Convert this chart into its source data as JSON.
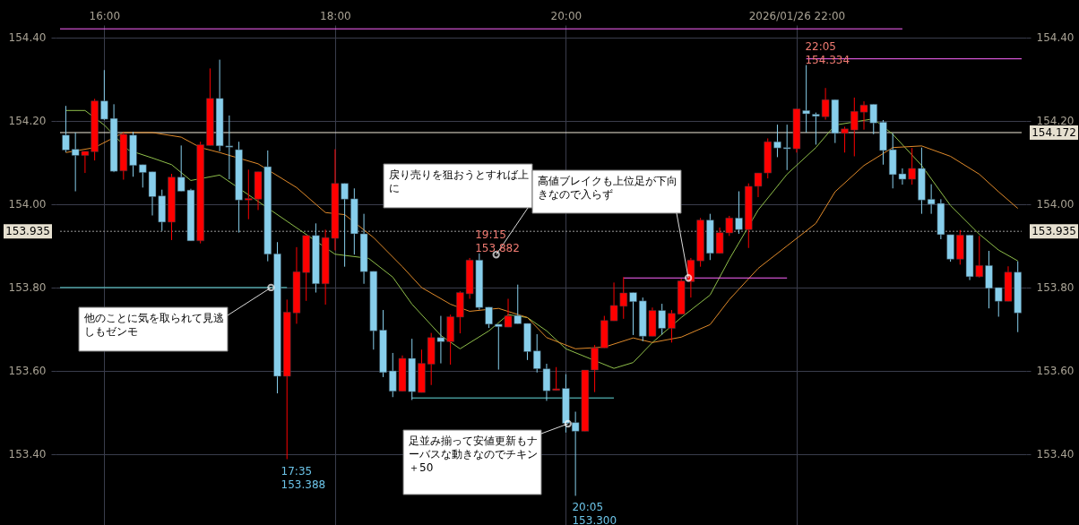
{
  "chart_data": {
    "type": "candlestick",
    "x": [
      "2026-01-26T15:40",
      "2026-01-26T15:45",
      "2026-01-26T15:50",
      "2026-01-26T15:55",
      "2026-01-26T16:00",
      "2026-01-26T16:05",
      "2026-01-26T16:10",
      "2026-01-26T16:15",
      "2026-01-26T16:20",
      "2026-01-26T16:25",
      "2026-01-26T16:30",
      "2026-01-26T16:35",
      "2026-01-26T16:40",
      "2026-01-26T16:45",
      "2026-01-26T16:50",
      "2026-01-26T16:55",
      "2026-01-26T17:00",
      "2026-01-26T17:05",
      "2026-01-26T17:10",
      "2026-01-26T17:15",
      "2026-01-26T17:20",
      "2026-01-26T17:25",
      "2026-01-26T17:30",
      "2026-01-26T17:35",
      "2026-01-26T17:40",
      "2026-01-26T17:45",
      "2026-01-26T17:50",
      "2026-01-26T17:55",
      "2026-01-26T18:00",
      "2026-01-26T18:05",
      "2026-01-26T18:10",
      "2026-01-26T18:15",
      "2026-01-26T18:20",
      "2026-01-26T18:25",
      "2026-01-26T18:30",
      "2026-01-26T18:35",
      "2026-01-26T18:40",
      "2026-01-26T18:45",
      "2026-01-26T18:50",
      "2026-01-26T18:55",
      "2026-01-26T19:00",
      "2026-01-26T19:05",
      "2026-01-26T19:10",
      "2026-01-26T19:15",
      "2026-01-26T19:20",
      "2026-01-26T19:25",
      "2026-01-26T19:30",
      "2026-01-26T19:35",
      "2026-01-26T19:40",
      "2026-01-26T19:45",
      "2026-01-26T19:50",
      "2026-01-26T19:55",
      "2026-01-26T20:00",
      "2026-01-26T20:05",
      "2026-01-26T20:10",
      "2026-01-26T20:15",
      "2026-01-26T20:20",
      "2026-01-26T20:25",
      "2026-01-26T20:30",
      "2026-01-26T20:35",
      "2026-01-26T20:40",
      "2026-01-26T20:45",
      "2026-01-26T20:50",
      "2026-01-26T20:55",
      "2026-01-26T21:00",
      "2026-01-26T21:05",
      "2026-01-26T21:10",
      "2026-01-26T21:15",
      "2026-01-26T21:20",
      "2026-01-26T21:25",
      "2026-01-26T21:30",
      "2026-01-26T21:35",
      "2026-01-26T21:40",
      "2026-01-26T21:45",
      "2026-01-26T21:50",
      "2026-01-26T21:55",
      "2026-01-26T22:00",
      "2026-01-26T22:05",
      "2026-01-26T22:10",
      "2026-01-26T22:15",
      "2026-01-26T22:20",
      "2026-01-26T22:25",
      "2026-01-26T22:30",
      "2026-01-26T22:35",
      "2026-01-26T22:40",
      "2026-01-26T22:45",
      "2026-01-26T22:50",
      "2026-01-26T22:55",
      "2026-01-26T23:00",
      "2026-01-26T23:05",
      "2026-01-26T23:10",
      "2026-01-26T23:15",
      "2026-01-26T23:20",
      "2026-01-26T23:25",
      "2026-01-26T23:30",
      "2026-01-26T23:35",
      "2026-01-26T23:40",
      "2026-01-26T23:45",
      "2026-01-26T23:50",
      "2026-01-26T23:55"
    ],
    "ohlc": [
      [
        154.166,
        154.236,
        154.125,
        154.13
      ],
      [
        154.132,
        154.172,
        154.031,
        154.117
      ],
      [
        154.117,
        154.127,
        154.075,
        154.127
      ],
      [
        154.126,
        154.253,
        154.105,
        154.248
      ],
      [
        154.248,
        154.322,
        154.202,
        154.204
      ],
      [
        154.206,
        154.24,
        154.077,
        154.079
      ],
      [
        154.08,
        154.172,
        154.059,
        154.168
      ],
      [
        154.166,
        154.174,
        154.066,
        154.093
      ],
      [
        154.095,
        154.095,
        154.04,
        154.076
      ],
      [
        154.078,
        154.078,
        153.973,
        154.018
      ],
      [
        154.02,
        154.035,
        153.936,
        153.957
      ],
      [
        153.957,
        154.073,
        153.914,
        154.065
      ],
      [
        154.065,
        154.141,
        154.031,
        154.031
      ],
      [
        154.034,
        154.037,
        153.912,
        153.912
      ],
      [
        153.912,
        154.15,
        153.906,
        154.143
      ],
      [
        154.141,
        154.326,
        154.141,
        154.254
      ],
      [
        154.254,
        154.347,
        154.127,
        154.14
      ],
      [
        154.14,
        154.213,
        154.06,
        154.137
      ],
      [
        154.131,
        154.15,
        153.932,
        154.01
      ],
      [
        154.01,
        154.083,
        153.964,
        154.014
      ],
      [
        154.012,
        154.078,
        153.986,
        154.078
      ],
      [
        154.09,
        154.129,
        153.863,
        153.88
      ],
      [
        153.881,
        153.909,
        153.546,
        153.587
      ],
      [
        153.587,
        153.771,
        153.388,
        153.741
      ],
      [
        153.739,
        153.897,
        153.713,
        153.838
      ],
      [
        153.836,
        153.925,
        153.768,
        153.925
      ],
      [
        153.925,
        153.954,
        153.788,
        153.809
      ],
      [
        153.809,
        153.939,
        153.759,
        153.92
      ],
      [
        153.918,
        154.132,
        153.889,
        154.05
      ],
      [
        154.05,
        154.05,
        153.85,
        154.012
      ],
      [
        154.013,
        154.038,
        153.879,
        153.929
      ],
      [
        153.929,
        153.977,
        153.809,
        153.838
      ],
      [
        153.839,
        153.839,
        153.651,
        153.696
      ],
      [
        153.698,
        153.746,
        153.585,
        153.596
      ],
      [
        153.6,
        153.643,
        153.537,
        153.551
      ],
      [
        153.551,
        153.637,
        153.551,
        153.63
      ],
      [
        153.63,
        153.677,
        153.53,
        153.55
      ],
      [
        153.548,
        153.651,
        153.548,
        153.618
      ],
      [
        153.616,
        153.691,
        153.566,
        153.68
      ],
      [
        153.68,
        153.732,
        153.618,
        153.67
      ],
      [
        153.67,
        153.735,
        153.615,
        153.73
      ],
      [
        153.729,
        153.791,
        153.69,
        153.788
      ],
      [
        153.785,
        153.871,
        153.773,
        153.866
      ],
      [
        153.866,
        153.882,
        153.747,
        153.752
      ],
      [
        153.753,
        153.753,
        153.703,
        153.712
      ],
      [
        153.712,
        153.712,
        153.603,
        153.706
      ],
      [
        153.705,
        153.773,
        153.705,
        153.732
      ],
      [
        153.733,
        153.807,
        153.713,
        153.713
      ],
      [
        153.714,
        153.714,
        153.626,
        153.646
      ],
      [
        153.648,
        153.688,
        153.596,
        153.605
      ],
      [
        153.605,
        153.617,
        153.528,
        153.552
      ],
      [
        153.553,
        153.609,
        153.553,
        153.557
      ],
      [
        153.558,
        153.592,
        153.452,
        153.474
      ],
      [
        153.476,
        153.502,
        153.3,
        153.455
      ],
      [
        153.455,
        153.602,
        153.455,
        153.602
      ],
      [
        153.602,
        153.662,
        153.549,
        153.655
      ],
      [
        153.655,
        153.732,
        153.655,
        153.721
      ],
      [
        153.72,
        153.812,
        153.72,
        153.757
      ],
      [
        153.755,
        153.825,
        153.725,
        153.787
      ],
      [
        153.788,
        153.788,
        153.686,
        153.766
      ],
      [
        153.768,
        153.776,
        153.671,
        153.683
      ],
      [
        153.683,
        153.752,
        153.683,
        153.745
      ],
      [
        153.745,
        153.761,
        153.687,
        153.702
      ],
      [
        153.702,
        153.746,
        153.668,
        153.738
      ],
      [
        153.736,
        153.821,
        153.736,
        153.816
      ],
      [
        153.814,
        153.871,
        153.776,
        153.866
      ],
      [
        153.864,
        153.967,
        153.85,
        153.962
      ],
      [
        153.962,
        153.977,
        153.866,
        153.882
      ],
      [
        153.882,
        153.944,
        153.882,
        153.932
      ],
      [
        153.931,
        153.972,
        153.924,
        153.967
      ],
      [
        153.967,
        154.031,
        153.929,
        153.939
      ],
      [
        153.939,
        154.05,
        153.895,
        154.043
      ],
      [
        154.043,
        154.075,
        154.017,
        154.075
      ],
      [
        154.075,
        154.158,
        154.062,
        154.15
      ],
      [
        154.15,
        154.191,
        154.113,
        154.135
      ],
      [
        154.136,
        154.191,
        154.082,
        154.133
      ],
      [
        154.133,
        154.229,
        154.124,
        154.229
      ],
      [
        154.225,
        154.334,
        154.172,
        154.217
      ],
      [
        154.216,
        154.22,
        154.143,
        154.211
      ],
      [
        154.21,
        154.279,
        154.203,
        154.251
      ],
      [
        154.251,
        154.251,
        154.147,
        154.17
      ],
      [
        154.17,
        154.186,
        154.124,
        154.181
      ],
      [
        154.178,
        154.256,
        154.115,
        154.223
      ],
      [
        154.221,
        154.247,
        154.179,
        154.238
      ],
      [
        154.24,
        154.24,
        154.168,
        154.195
      ],
      [
        154.197,
        154.202,
        154.095,
        154.129
      ],
      [
        154.131,
        154.17,
        154.038,
        154.071
      ],
      [
        154.073,
        154.086,
        154.047,
        154.06
      ],
      [
        154.06,
        154.135,
        154.047,
        154.086
      ],
      [
        154.086,
        154.136,
        153.977,
        154.01
      ],
      [
        154.012,
        154.048,
        153.977,
        154.0
      ],
      [
        154.002,
        154.012,
        153.916,
        153.927
      ],
      [
        153.927,
        153.927,
        153.862,
        153.868
      ],
      [
        153.868,
        153.938,
        153.855,
        153.926
      ],
      [
        153.926,
        153.926,
        153.818,
        153.826
      ],
      [
        153.826,
        153.924,
        153.824,
        153.853
      ],
      [
        153.853,
        153.888,
        153.75,
        153.798
      ],
      [
        153.8,
        153.8,
        153.73,
        153.767
      ],
      [
        153.767,
        153.851,
        153.767,
        153.837
      ],
      [
        153.837,
        153.863,
        153.693,
        153.739
      ]
    ],
    "colors": [
      "#87ceeb",
      "#87ceeb",
      "#ff0000",
      "#ff0000",
      "#87ceeb",
      "#87ceeb",
      "#ff0000",
      "#87ceeb",
      "#87ceeb",
      "#87ceeb",
      "#87ceeb",
      "#ff0000",
      "#87ceeb",
      "#87ceeb",
      "#ff0000",
      "#ff0000",
      "#87ceeb",
      "#87ceeb",
      "#87ceeb",
      "#ff0000",
      "#ff0000",
      "#87ceeb",
      "#87ceeb",
      "#ff0000",
      "#ff0000",
      "#ff0000",
      "#87ceeb",
      "#ff0000",
      "#ff0000",
      "#87ceeb",
      "#87ceeb",
      "#87ceeb",
      "#87ceeb",
      "#87ceeb",
      "#87ceeb",
      "#ff0000",
      "#87ceeb",
      "#ff0000",
      "#ff0000",
      "#87ceeb",
      "#ff0000",
      "#ff0000",
      "#ff0000",
      "#87ceeb",
      "#87ceeb",
      "#87ceeb",
      "#ff0000",
      "#87ceeb",
      "#87ceeb",
      "#87ceeb",
      "#87ceeb",
      "#ff0000",
      "#87ceeb",
      "#87ceeb",
      "#ff0000",
      "#ff0000",
      "#ff0000",
      "#ff0000",
      "#ff0000",
      "#87ceeb",
      "#87ceeb",
      "#ff0000",
      "#87ceeb",
      "#ff0000",
      "#ff0000",
      "#ff0000",
      "#ff0000",
      "#87ceeb",
      "#ff0000",
      "#ff0000",
      "#87ceeb",
      "#ff0000",
      "#ff0000",
      "#ff0000",
      "#87ceeb",
      "#87ceeb",
      "#ff0000",
      "#87ceeb",
      "#87ceeb",
      "#ff0000",
      "#87ceeb",
      "#ff0000",
      "#ff0000",
      "#ff0000",
      "#87ceeb",
      "#87ceeb",
      "#87ceeb",
      "#87ceeb",
      "#ff0000",
      "#87ceeb",
      "#87ceeb",
      "#87ceeb",
      "#87ceeb",
      "#ff0000",
      "#87ceeb",
      "#ff0000",
      "#87ceeb",
      "#87ceeb",
      "#ff0000",
      "#87ceeb"
    ],
    "series": [
      {
        "type": "line",
        "color": "#8fbf4a",
        "x": [
          "2026-01-26T15:40",
          "2026-01-26T15:50",
          "2026-01-26T16:00",
          "2026-01-26T16:12:30",
          "2026-01-26T16:25",
          "2026-01-26T16:35",
          "2026-01-26T16:45",
          "2026-01-26T17:00",
          "2026-01-26T18:00",
          "2026-01-26T18:17:30",
          "2026-01-26T18:30",
          "2026-01-26T18:40",
          "2026-01-26T18:55",
          "2026-01-26T19:05",
          "2026-01-26T19:20",
          "2026-01-26T19:30",
          "2026-01-26T19:40",
          "2026-01-26T19:50",
          "2026-01-26T20:00",
          "2026-01-26T20:25",
          "2026-01-26T20:35",
          "2026-01-26T20:45",
          "2026-01-26T21:00",
          "2026-01-26T21:15",
          "2026-01-26T21:25",
          "2026-01-26T21:40",
          "2026-01-26T21:55",
          "2026-01-26T22:10",
          "2026-01-26T22:20",
          "2026-01-26T22:40",
          "2026-01-26T22:50",
          "2026-01-26T23:05",
          "2026-01-26T23:20",
          "2026-01-26T23:35",
          "2026-01-26T23:45",
          "2026-01-26T23:55"
        ],
        "values": [
          154.225,
          154.225,
          154.19,
          154.13,
          154.111,
          154.095,
          154.057,
          154.07,
          153.88,
          153.87,
          153.825,
          153.76,
          153.685,
          153.653,
          153.696,
          153.735,
          153.728,
          153.696,
          153.653,
          153.606,
          153.62,
          153.668,
          153.728,
          153.782,
          153.868,
          153.986,
          154.072,
          154.136,
          154.19,
          154.205,
          154.168,
          154.093,
          153.997,
          153.928,
          153.89,
          153.864
        ]
      },
      {
        "type": "line",
        "color": "#e08a2a",
        "x": [
          "2026-01-26T15:40",
          "2026-01-26T15:55",
          "2026-01-26T16:10",
          "2026-01-26T16:25",
          "2026-01-26T16:40",
          "2026-01-26T16:50",
          "2026-01-26T17:00",
          "2026-01-26T17:20",
          "2026-01-26T17:40",
          "2026-01-26T17:55",
          "2026-01-26T18:05",
          "2026-01-26T18:20",
          "2026-01-26T18:35",
          "2026-01-26T18:45",
          "2026-01-26T19:00",
          "2026-01-26T19:10",
          "2026-01-26T19:25",
          "2026-01-26T19:40",
          "2026-01-26T19:50",
          "2026-01-26T20:05",
          "2026-01-26T20:20",
          "2026-01-26T20:35",
          "2026-01-26T20:45",
          "2026-01-26T21:00",
          "2026-01-26T21:15",
          "2026-01-26T21:25",
          "2026-01-26T21:40",
          "2026-01-26T21:55",
          "2026-01-26T22:10",
          "2026-01-26T22:20",
          "2026-01-26T22:35",
          "2026-01-26T22:50",
          "2026-01-26T23:05",
          "2026-01-26T23:20",
          "2026-01-26T23:35",
          "2026-01-26T23:45",
          "2026-01-26T23:55"
        ],
        "values": [
          154.124,
          154.136,
          154.172,
          154.172,
          154.161,
          154.136,
          154.124,
          154.097,
          154.04,
          153.98,
          153.975,
          153.92,
          153.85,
          153.8,
          153.76,
          153.743,
          153.75,
          153.728,
          153.68,
          153.653,
          153.657,
          153.679,
          153.668,
          153.681,
          153.711,
          153.771,
          153.846,
          153.9,
          153.954,
          154.03,
          154.093,
          154.136,
          154.14,
          154.115,
          154.072,
          154.03,
          153.99
        ]
      },
      {
        "type": "line",
        "color": "#66dddd",
        "x": [
          "2026-01-26T15:37",
          "2026-01-26T17:35"
        ],
        "values": [
          153.8,
          153.8
        ]
      },
      {
        "type": "line",
        "color": "#66dddd",
        "x": [
          "2026-01-26T18:40",
          "2026-01-26T20:25"
        ],
        "values": [
          153.535,
          153.535
        ]
      },
      {
        "type": "line",
        "color": "#ff66ff",
        "x": [
          "2026-01-26T20:30",
          "2026-01-26T21:55"
        ],
        "values": [
          153.823,
          153.823
        ]
      },
      {
        "type": "line",
        "color": "#ff66ff",
        "x": [
          "2026-01-26T22:05",
          "2026-01-26T23:57"
        ],
        "values": [
          154.349,
          154.349
        ]
      },
      {
        "type": "line",
        "color": "#ff66ff",
        "x": [
          "2026-01-26T15:37",
          "2026-01-26T22:55"
        ],
        "values": [
          154.421,
          154.421
        ]
      }
    ],
    "ref_lines": [
      {
        "axis": "y",
        "value": 154.172,
        "label": "154.172",
        "color": "#f0ead8",
        "line_style": "solid"
      },
      {
        "axis": "y",
        "value": 153.935,
        "label": "153.935",
        "color": "#9a9a9a",
        "line_style": "dotted"
      }
    ],
    "annotations": [
      {
        "text": "他のことに気を取られて見逃しもゼンモ",
        "x": "2026-01-26T17:28",
        "y": 153.8
      },
      {
        "text": "戻り売りを狙おうとすれば上に",
        "x": "2026-01-26T19:24",
        "y": 153.879
      },
      {
        "text": "高値ブレイクも上位足が下向きなので入らず",
        "x": "2026-01-26T21:03",
        "y": 153.823
      },
      {
        "text": "足並み揃って安値更新もナーバスな動きなのでチキン＋50",
        "x": "2026-01-26T20:01",
        "y": 153.473
      },
      {
        "text": "19:15\n153.882",
        "x": "2026-01-26T19:15",
        "y": 153.882
      },
      {
        "text": "17:35\n153.388",
        "x": "2026-01-26T17:35",
        "y": 153.388
      },
      {
        "text": "20:05\n153.300",
        "x": "2026-01-26T20:05",
        "y": 153.3
      },
      {
        "text": "22:05\n154.334",
        "x": "2026-01-26T22:05",
        "y": 154.334
      }
    ],
    "xlim": [
      "2026-01-26T15:37",
      "2026-01-26T23:57"
    ],
    "xticks": [
      {
        "value": "2026-01-26T16:00",
        "label": "16:00"
      },
      {
        "value": "2026-01-26T18:00",
        "label": "18:00"
      },
      {
        "value": "2026-01-26T20:00",
        "label": "20:00"
      },
      {
        "value": "2026-01-26T22:00",
        "label": "2026/01/26 22:00"
      }
    ],
    "ylim": [
      153.23,
      154.43
    ],
    "yticks": [
      {
        "value": 153.4,
        "label": "153.40"
      },
      {
        "value": 153.6,
        "label": "153.60"
      },
      {
        "value": 153.8,
        "label": "153.80"
      },
      {
        "value": 154.0,
        "label": "154.00"
      },
      {
        "value": 154.2,
        "label": "154.20"
      },
      {
        "value": 154.4,
        "label": "154.40"
      }
    ],
    "y2lim": [
      153.23,
      154.43
    ],
    "y2ticks": [
      {
        "value": 153.4,
        "label": "153.40"
      },
      {
        "value": 153.6,
        "label": "153.60"
      },
      {
        "value": 153.8,
        "label": "153.80"
      },
      {
        "value": 154.0,
        "label": "154.00"
      },
      {
        "value": 154.2,
        "label": "154.20"
      },
      {
        "value": 154.4,
        "label": "154.40"
      }
    ],
    "grid": true
  }
}
